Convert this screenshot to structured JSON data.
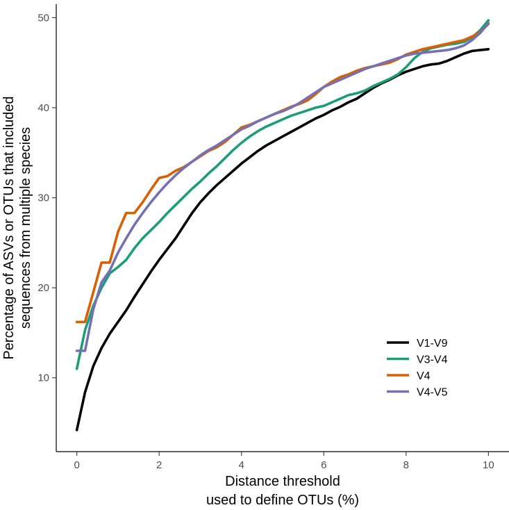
{
  "chart_data": {
    "type": "line",
    "title": "",
    "xlabel": [
      "Distance threshold",
      "used to define OTUs (%)"
    ],
    "ylabel": [
      "Percentage of ASVs or OTUs that included",
      "sequences from multiple species"
    ],
    "xlim": [
      -0.5,
      10.5
    ],
    "ylim": [
      1.8,
      51.5
    ],
    "xticks": [
      0,
      2,
      4,
      6,
      8,
      10
    ],
    "yticks": [
      10,
      20,
      30,
      40,
      50
    ],
    "grid": false,
    "legend_position": "bottom-right",
    "x": [
      0,
      0.2,
      0.4,
      0.6,
      0.8,
      1.0,
      1.2,
      1.4,
      1.6,
      1.8,
      2.0,
      2.2,
      2.4,
      2.6,
      2.8,
      3.0,
      3.2,
      3.4,
      3.6,
      3.8,
      4.0,
      4.2,
      4.4,
      4.6,
      4.8,
      5.0,
      5.2,
      5.4,
      5.6,
      5.8,
      6.0,
      6.2,
      6.4,
      6.6,
      6.8,
      7.0,
      7.2,
      7.4,
      7.6,
      7.8,
      8.0,
      8.2,
      8.4,
      8.6,
      8.8,
      9.0,
      9.2,
      9.4,
      9.6,
      9.8,
      10.0
    ],
    "series": [
      {
        "name": "V1-V9",
        "color": "#000000",
        "values": [
          4.2,
          8.4,
          11.3,
          13.3,
          14.9,
          16.2,
          17.5,
          19.0,
          20.4,
          21.8,
          23.1,
          24.3,
          25.5,
          26.9,
          28.3,
          29.5,
          30.5,
          31.4,
          32.2,
          33.0,
          33.8,
          34.5,
          35.2,
          35.8,
          36.3,
          36.8,
          37.3,
          37.8,
          38.3,
          38.8,
          39.2,
          39.7,
          40.1,
          40.6,
          41.0,
          41.6,
          42.2,
          42.7,
          43.1,
          43.6,
          44.0,
          44.3,
          44.6,
          44.8,
          44.9,
          45.2,
          45.6,
          46.0,
          46.3,
          46.4,
          46.5
        ]
      },
      {
        "name": "V3-V4",
        "color": "#1b9e77",
        "values": [
          11.0,
          15.3,
          18.0,
          20.0,
          21.6,
          22.3,
          23.1,
          24.4,
          25.5,
          26.4,
          27.3,
          28.3,
          29.2,
          30.1,
          31.0,
          31.8,
          32.7,
          33.5,
          34.4,
          35.3,
          36.1,
          36.8,
          37.4,
          37.9,
          38.3,
          38.7,
          39.1,
          39.4,
          39.7,
          40.0,
          40.2,
          40.6,
          41.0,
          41.4,
          41.6,
          41.9,
          42.4,
          42.8,
          43.2,
          43.7,
          44.5,
          45.5,
          46.2,
          46.6,
          46.8,
          47.0,
          47.1,
          47.3,
          47.8,
          48.6,
          49.7
        ]
      },
      {
        "name": "V4",
        "color": "#d95f02",
        "values": [
          16.2,
          16.2,
          19.5,
          22.8,
          22.8,
          26.2,
          28.3,
          28.3,
          29.5,
          30.9,
          32.2,
          32.4,
          33.0,
          33.4,
          34.0,
          34.6,
          35.2,
          35.6,
          36.2,
          37.0,
          37.8,
          38.1,
          38.5,
          38.9,
          39.3,
          39.7,
          40.1,
          40.4,
          40.8,
          41.5,
          42.3,
          42.9,
          43.4,
          43.7,
          44.1,
          44.4,
          44.6,
          44.8,
          45.0,
          45.4,
          45.9,
          46.2,
          46.5,
          46.7,
          46.9,
          47.1,
          47.3,
          47.5,
          47.9,
          48.4,
          49.3
        ]
      },
      {
        "name": "V4-V5",
        "color": "#7570b3",
        "values": [
          13.0,
          13.0,
          17.6,
          20.6,
          21.9,
          23.9,
          25.5,
          27.0,
          28.3,
          29.5,
          30.6,
          31.6,
          32.5,
          33.3,
          34.0,
          34.7,
          35.3,
          35.8,
          36.4,
          37.0,
          37.6,
          38.0,
          38.5,
          38.9,
          39.3,
          39.6,
          40.0,
          40.5,
          41.1,
          41.7,
          42.3,
          42.7,
          43.1,
          43.5,
          43.9,
          44.3,
          44.6,
          44.9,
          45.2,
          45.5,
          45.8,
          46.0,
          46.1,
          46.2,
          46.3,
          46.4,
          46.6,
          46.9,
          47.5,
          48.3,
          49.4
        ]
      }
    ]
  }
}
